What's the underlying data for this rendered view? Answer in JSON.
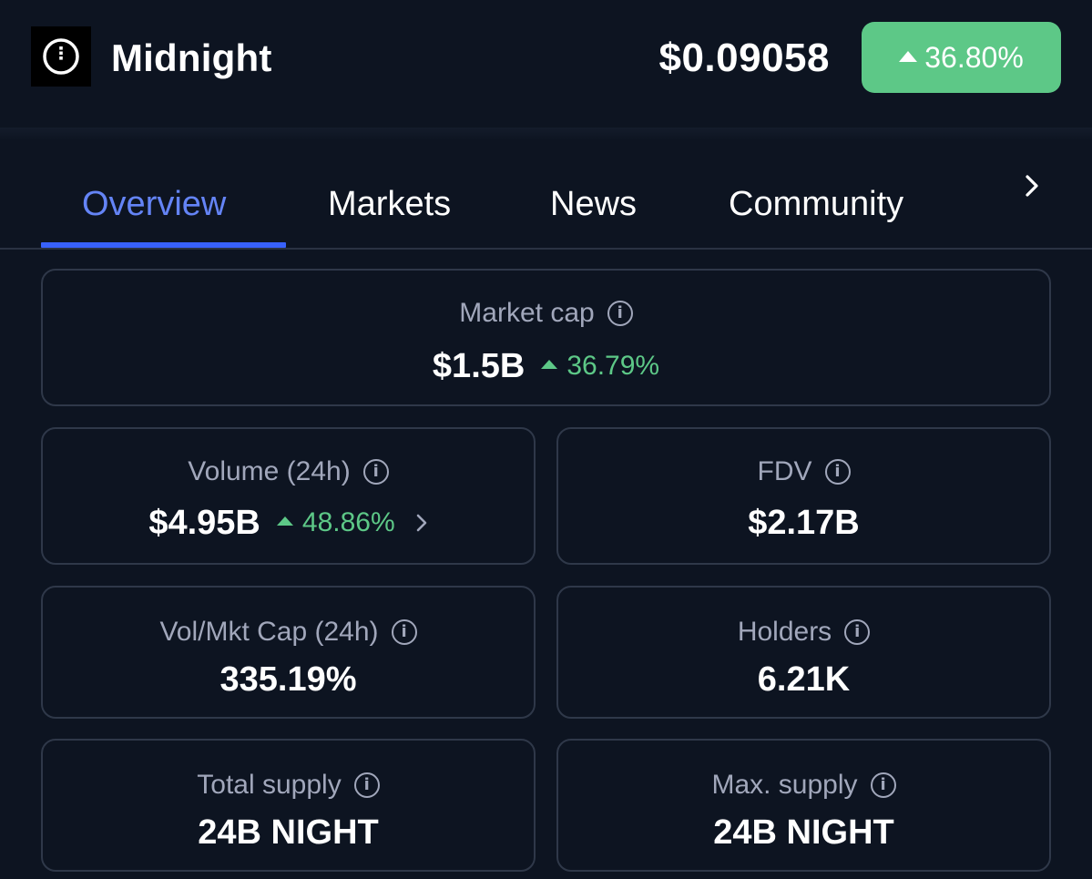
{
  "header": {
    "coin_name": "Midnight",
    "price": "$0.09058",
    "change_pct": "36.80%",
    "logo_icon": "midnight-logo-icon",
    "positive_color": "#5dc887"
  },
  "tabs": [
    {
      "label": "Overview",
      "active": true
    },
    {
      "label": "Markets",
      "active": false
    },
    {
      "label": "News",
      "active": false
    },
    {
      "label": "Community",
      "active": false
    }
  ],
  "tabs_next_icon": "chevron-right-icon",
  "stats": {
    "market_cap": {
      "label": "Market cap",
      "value": "$1.5B",
      "change": "36.79%"
    },
    "volume_24h": {
      "label": "Volume (24h)",
      "value": "$4.95B",
      "change": "48.86%"
    },
    "fdv": {
      "label": "FDV",
      "value": "$2.17B"
    },
    "vol_mkt_cap": {
      "label": "Vol/Mkt Cap (24h)",
      "value": "335.19%"
    },
    "holders": {
      "label": "Holders",
      "value": "6.21K"
    },
    "total_supply": {
      "label": "Total supply",
      "value": "24B NIGHT"
    },
    "max_supply": {
      "label": "Max. supply",
      "value": "24B NIGHT"
    }
  },
  "accent_color": "#3861fb"
}
